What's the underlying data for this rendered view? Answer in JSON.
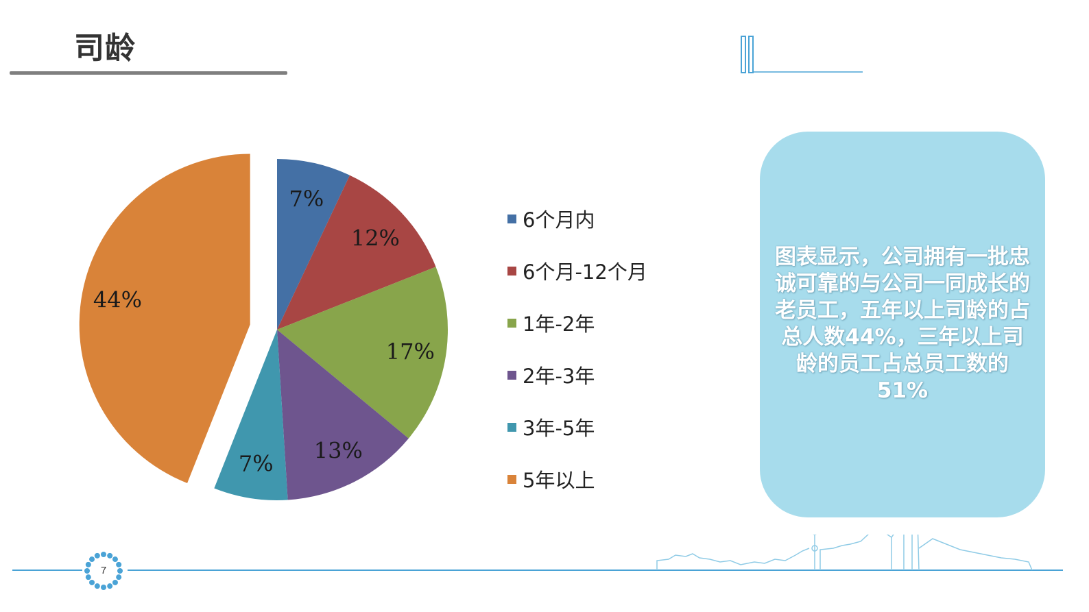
{
  "slide": {
    "title": "司龄",
    "page_number": "7",
    "callout": "图表显示，公司拥有一批忠诚可靠的与公司一同成长的老员工，五年以上司龄的占总人数44%，三年以上司龄的员工占总员工数的 51%"
  },
  "colors": {
    "accent": "#4aa3d6",
    "callout_bg": "#a7dcec",
    "rule": "#7f7f7f"
  },
  "chart_data": {
    "type": "pie",
    "title": "",
    "categories": [
      "6个月内",
      "6个月-12个月",
      "1年-2年",
      "2年-3年",
      "3年-5年",
      "5年以上"
    ],
    "values": [
      7,
      12,
      17,
      13,
      7,
      44
    ],
    "labels": [
      "7%",
      "12%",
      "17%",
      "13%",
      "7%",
      "44%"
    ],
    "colors": [
      "#4470a5",
      "#a84644",
      "#88a54b",
      "#6e558e",
      "#4097ae",
      "#d98339"
    ],
    "exploded_slice": "5年以上",
    "legend_position": "right"
  }
}
